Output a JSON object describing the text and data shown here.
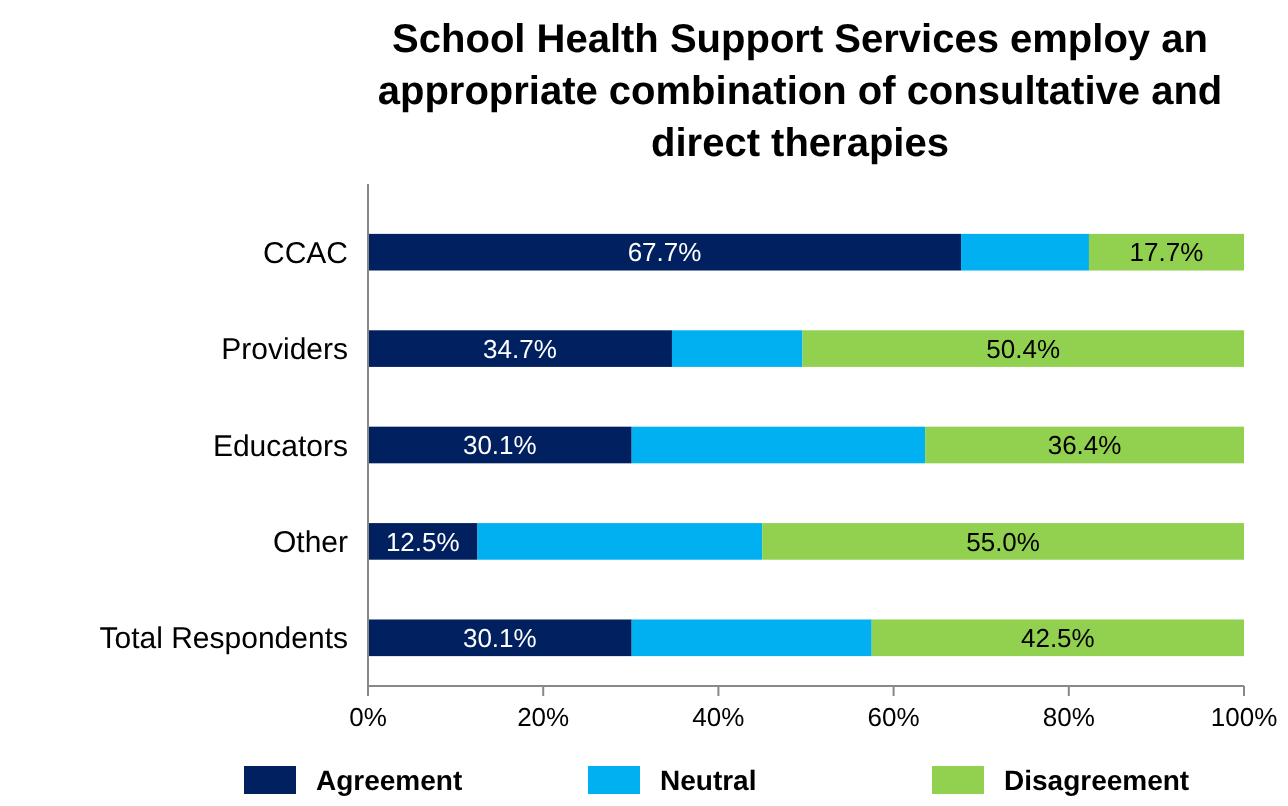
{
  "chart_data": {
    "type": "bar",
    "orientation": "horizontal",
    "stacked": true,
    "title": "School Health Support Services employ an appropriate combination of consultative and direct therapies",
    "categories": [
      "CCAC",
      "Providers",
      "Educators",
      "Other",
      "Total Respondents"
    ],
    "series": [
      {
        "name": "Agreement",
        "color": "#002060",
        "values": [
          67.7,
          34.7,
          30.1,
          12.5,
          30.1
        ],
        "value_labels": [
          "67.7%",
          "34.7%",
          "30.1%",
          "12.5%",
          "30.1%"
        ]
      },
      {
        "name": "Neutral",
        "color": "#00b0f0",
        "values": [
          14.6,
          14.9,
          33.5,
          32.5,
          27.4
        ]
      },
      {
        "name": "Disagreement",
        "color": "#92d050",
        "values": [
          17.7,
          50.4,
          36.4,
          55.0,
          42.5
        ],
        "value_labels": [
          "17.7%",
          "50.4%",
          "36.4%",
          "55.0%",
          "42.5%"
        ]
      }
    ],
    "xlim": [
      0,
      100
    ],
    "xticks": [
      {
        "value": 0,
        "label": "0%"
      },
      {
        "value": 20,
        "label": "20%"
      },
      {
        "value": 40,
        "label": "40%"
      },
      {
        "value": 60,
        "label": "60%"
      },
      {
        "value": 80,
        "label": "80%"
      },
      {
        "value": 100,
        "label": "100%"
      }
    ],
    "legend": "bottom"
  }
}
